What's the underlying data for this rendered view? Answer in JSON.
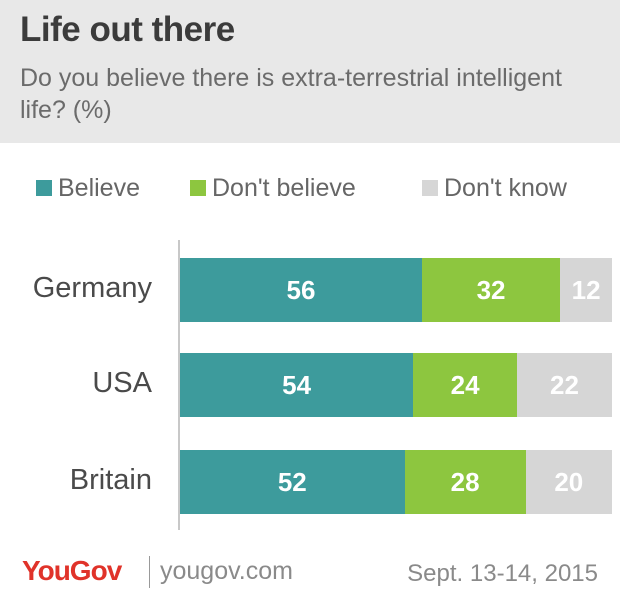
{
  "title": "Life out there",
  "subtitle": "Do you believe there is extra-terrestrial intelligent life? (%)",
  "legend": [
    {
      "label": "Believe",
      "color": "#3d9b9c"
    },
    {
      "label": "Don't believe",
      "color": "#8dc63f"
    },
    {
      "label": "Don't know",
      "color": "#d6d6d6"
    }
  ],
  "chart_data": {
    "type": "bar",
    "orientation": "horizontal",
    "stacked": true,
    "categories": [
      "Germany",
      "USA",
      "Britain"
    ],
    "series": [
      {
        "name": "Believe",
        "values": [
          56,
          54,
          52
        ],
        "color": "#3d9b9c"
      },
      {
        "name": "Don't believe",
        "values": [
          32,
          24,
          28
        ],
        "color": "#8dc63f"
      },
      {
        "name": "Don't know",
        "values": [
          12,
          22,
          20
        ],
        "color": "#d6d6d6"
      }
    ],
    "xlim": [
      0,
      100
    ],
    "legend_position": "top"
  },
  "footer": {
    "brand": "YouGov",
    "url": "yougov.com",
    "date": "Sept. 13-14, 2015"
  }
}
